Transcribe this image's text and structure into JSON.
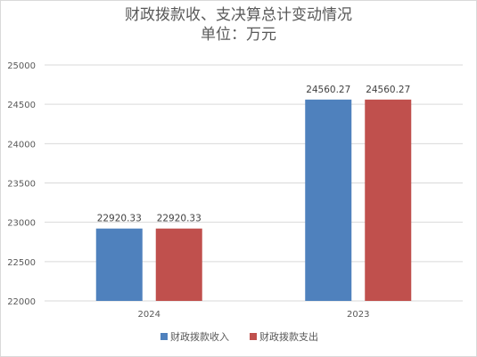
{
  "chart_data": {
    "type": "bar",
    "title": "财政拨款收、支决算总计变动情况",
    "subtitle": "单位：万元",
    "categories": [
      "2024",
      "2023"
    ],
    "series": [
      {
        "name": "财政拨款收入",
        "values": [
          22920.33,
          24560.27
        ],
        "labels": [
          "22920.33",
          "24560.27"
        ],
        "color": "#4f81bd"
      },
      {
        "name": "财政拨款支出",
        "values": [
          22920.33,
          24560.27
        ],
        "labels": [
          "22920.33",
          "24560.27"
        ],
        "color": "#c0504d"
      }
    ],
    "ylim": [
      22000,
      25000
    ],
    "yticks": [
      22000,
      22500,
      23000,
      23500,
      24000,
      24500,
      25000
    ],
    "ytick_labels": [
      "22000",
      "22500",
      "23000",
      "23500",
      "24000",
      "24500",
      "25000"
    ],
    "grid": true,
    "legend_position": "bottom"
  }
}
